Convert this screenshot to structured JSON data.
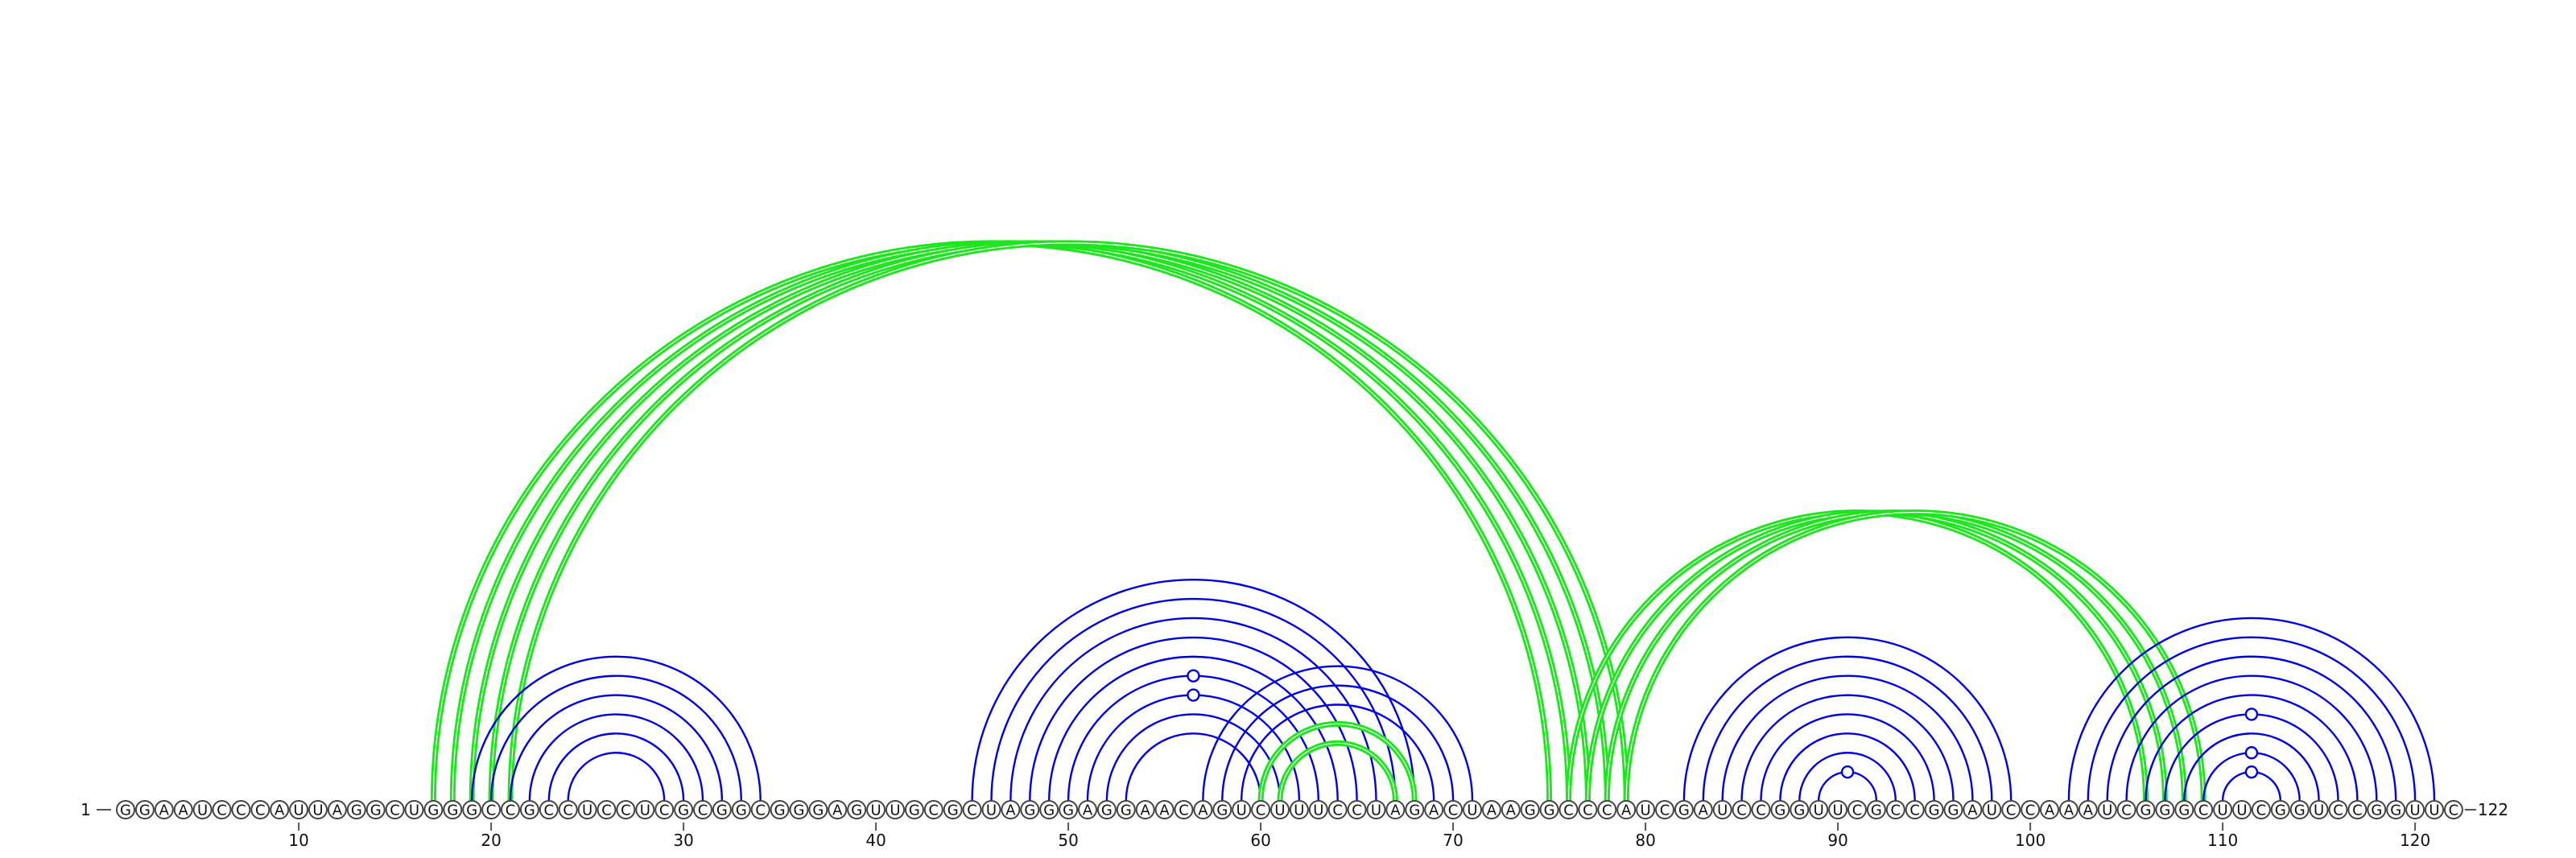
{
  "sequence": "GGAAUCCCAUUAGGCUGGGCCGCCUCCUCGCGGCGGGAGUUGCGCUAGGGAGGAACAGUCUUUCCUAGACUAAGGCCCAUCGAUCCGGUUCGCCGGAUCCAAAUCGGGCUUCGGUCCGGUUC",
  "start_label": "1",
  "end_label": "122",
  "ticks": [
    "10",
    "20",
    "30",
    "40",
    "50",
    "60",
    "70",
    "80",
    "90",
    "100",
    "110",
    "120"
  ],
  "colors": {
    "primary_arc": "#0000e6",
    "secondary_arc": "#1ee61e",
    "nucleotide_stroke": "#444444"
  },
  "arc_groups": [
    {
      "color": "secondary",
      "pairs": [
        [
          17,
          75
        ],
        [
          18,
          76
        ],
        [
          19,
          77
        ],
        [
          20,
          78
        ],
        [
          21,
          79
        ]
      ]
    },
    {
      "color": "primary",
      "pairs": [
        [
          19,
          34
        ],
        [
          20,
          33
        ],
        [
          21,
          32
        ],
        [
          22,
          31
        ],
        [
          23,
          30
        ],
        [
          24,
          29
        ]
      ]
    },
    {
      "color": "primary",
      "pairs": [
        [
          45,
          68
        ],
        [
          46,
          67
        ],
        [
          47,
          66
        ],
        [
          48,
          65
        ],
        [
          49,
          64
        ],
        [
          50,
          63
        ],
        [
          51,
          62
        ],
        [
          52,
          61
        ],
        [
          53,
          60
        ]
      ]
    },
    {
      "color": "primary",
      "pairs": [
        [
          57,
          71
        ],
        [
          58,
          70
        ],
        [
          59,
          69
        ],
        [
          60,
          68
        ],
        [
          61,
          67
        ]
      ]
    },
    {
      "color": "secondary",
      "pairs": [
        [
          60,
          68
        ],
        [
          61,
          67
        ]
      ]
    },
    {
      "color": "secondary",
      "pairs": [
        [
          76,
          106
        ],
        [
          77,
          107
        ],
        [
          78,
          108
        ],
        [
          79,
          109
        ]
      ]
    },
    {
      "color": "primary",
      "pairs": [
        [
          82,
          99
        ],
        [
          83,
          98
        ],
        [
          84,
          97
        ],
        [
          85,
          96
        ],
        [
          86,
          95
        ],
        [
          87,
          94
        ],
        [
          88,
          93
        ],
        [
          89,
          92
        ]
      ]
    },
    {
      "color": "primary",
      "pairs": [
        [
          102,
          121
        ],
        [
          103,
          120
        ],
        [
          104,
          119
        ],
        [
          105,
          118
        ],
        [
          106,
          117
        ],
        [
          107,
          116
        ],
        [
          108,
          115
        ],
        [
          109,
          114
        ],
        [
          110,
          113
        ]
      ]
    }
  ],
  "arc_markers": [
    {
      "base": 56.5,
      "ring": 2
    },
    {
      "base": 56.5,
      "ring": 3
    },
    {
      "base": 90.5,
      "ring": 0
    },
    {
      "base": 111.5,
      "ring": 0
    },
    {
      "base": 111.5,
      "ring": 1
    },
    {
      "base": 111.5,
      "ring": 3
    }
  ]
}
